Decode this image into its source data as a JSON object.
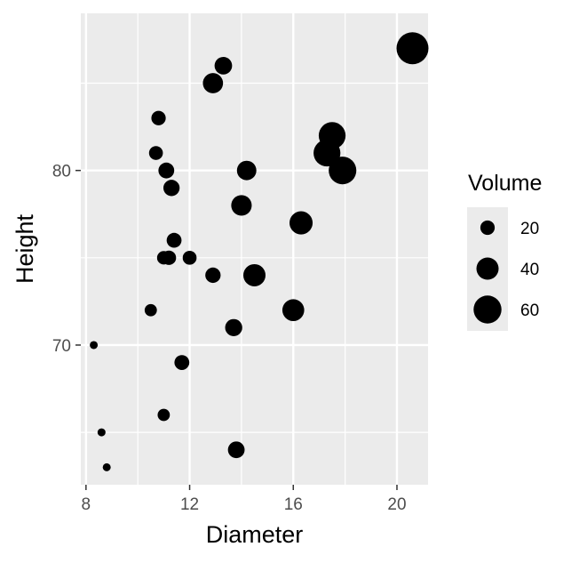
{
  "chart_data": {
    "type": "scatter",
    "xlabel": "Diameter",
    "ylabel": "Height",
    "size_variable": "Volume",
    "xlim": [
      7.8,
      21.2
    ],
    "ylim": [
      62,
      89
    ],
    "x_ticks": [
      8,
      12,
      16,
      20
    ],
    "x_tick_labels": [
      "8",
      "12",
      "16",
      "20"
    ],
    "x_minor_ticks": [
      10,
      14,
      18
    ],
    "y_ticks": [
      70,
      80
    ],
    "y_tick_labels": [
      "70",
      "80"
    ],
    "y_minor_ticks": [
      65,
      75,
      85
    ],
    "grid": true,
    "panel_background": "#ebebeb",
    "point_color": "#000000",
    "legend": {
      "title": "Volume",
      "position": "right",
      "items": [
        {
          "label": "20",
          "value": 20
        },
        {
          "label": "40",
          "value": 40
        },
        {
          "label": "60",
          "value": 60
        }
      ]
    },
    "size_domain": [
      10,
      77
    ],
    "points": [
      {
        "x": 8.3,
        "y": 70,
        "volume": 10
      },
      {
        "x": 8.6,
        "y": 65,
        "volume": 10
      },
      {
        "x": 8.8,
        "y": 63,
        "volume": 10
      },
      {
        "x": 10.5,
        "y": 72,
        "volume": 16
      },
      {
        "x": 10.7,
        "y": 81,
        "volume": 19
      },
      {
        "x": 10.8,
        "y": 83,
        "volume": 20
      },
      {
        "x": 11.0,
        "y": 66,
        "volume": 16
      },
      {
        "x": 11.0,
        "y": 75,
        "volume": 18
      },
      {
        "x": 11.1,
        "y": 80,
        "volume": 23
      },
      {
        "x": 11.2,
        "y": 75,
        "volume": 20
      },
      {
        "x": 11.3,
        "y": 79,
        "volume": 24
      },
      {
        "x": 11.4,
        "y": 76,
        "volume": 21
      },
      {
        "x": 11.7,
        "y": 69,
        "volume": 21
      },
      {
        "x": 12.0,
        "y": 75,
        "volume": 19
      },
      {
        "x": 12.9,
        "y": 74,
        "volume": 22
      },
      {
        "x": 12.9,
        "y": 85,
        "volume": 34
      },
      {
        "x": 13.3,
        "y": 86,
        "volume": 27
      },
      {
        "x": 13.7,
        "y": 71,
        "volume": 26
      },
      {
        "x": 13.8,
        "y": 64,
        "volume": 25
      },
      {
        "x": 14.0,
        "y": 78,
        "volume": 35
      },
      {
        "x": 14.2,
        "y": 80,
        "volume": 32
      },
      {
        "x": 14.5,
        "y": 74,
        "volume": 40
      },
      {
        "x": 16.0,
        "y": 72,
        "volume": 39
      },
      {
        "x": 16.3,
        "y": 77,
        "volume": 43
      },
      {
        "x": 17.3,
        "y": 81,
        "volume": 56
      },
      {
        "x": 17.5,
        "y": 82,
        "volume": 56
      },
      {
        "x": 17.9,
        "y": 80,
        "volume": 59
      },
      {
        "x": 20.6,
        "y": 87,
        "volume": 77
      }
    ]
  }
}
